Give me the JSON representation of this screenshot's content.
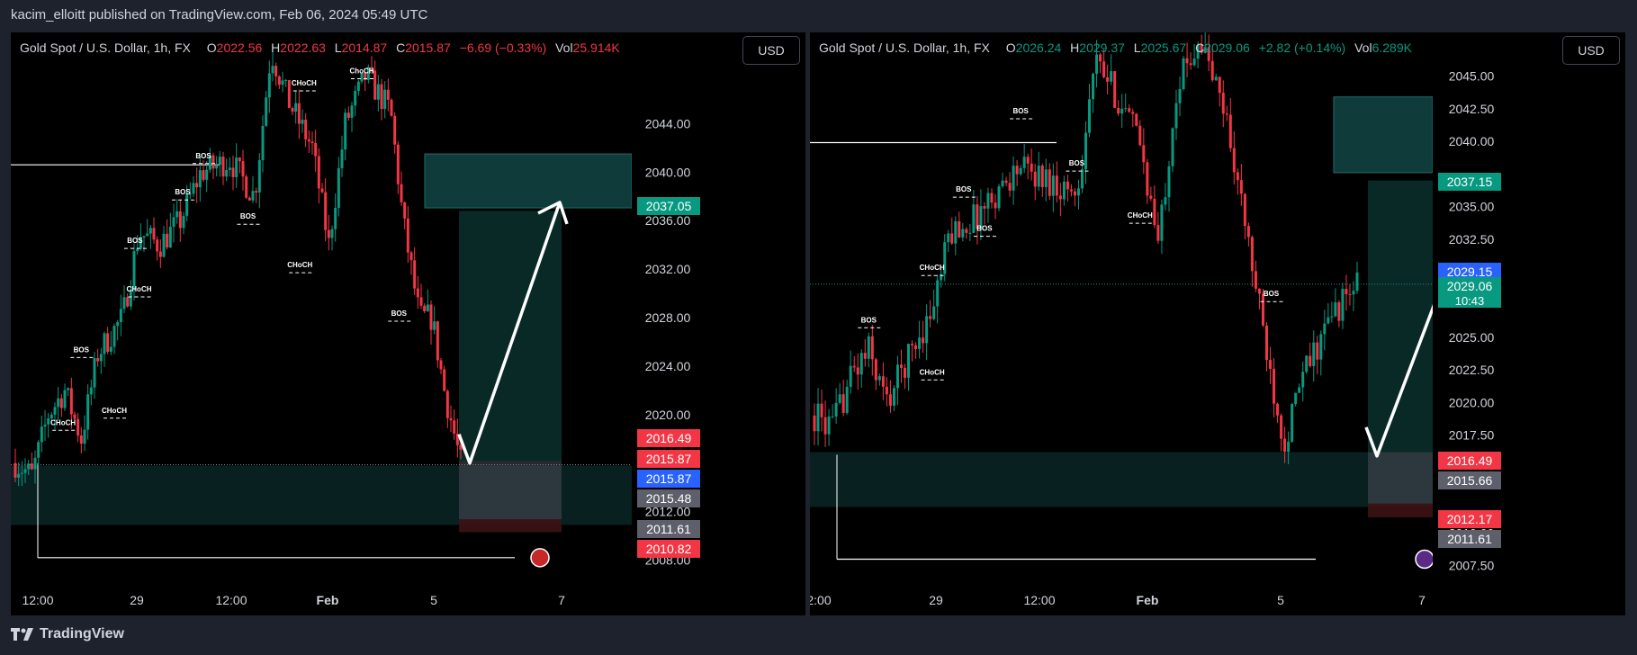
{
  "header": {
    "published": "kacim_elloitt published on TradingView.com, Feb 06, 2024 05:49 UTC"
  },
  "footer": {
    "brand": "TradingView"
  },
  "colors": {
    "up": "#089981",
    "down": "#f23645",
    "zone": "#0f3b3b",
    "target": "#0a2d2a",
    "stop": "#3d1214",
    "blue": "#2962ff",
    "gray": "#5d606b"
  },
  "chart_data": [
    {
      "type": "candlestick",
      "legend": {
        "symbol": "Gold Spot / U.S. Dollar, 1h, FX",
        "o_label": "O",
        "o": "2022.56",
        "h_label": "H",
        "h": "2022.63",
        "l_label": "L",
        "l": "2014.87",
        "c_label": "C",
        "c": "2015.87",
        "chg": "−6.69 (−0.33%)",
        "vol_label": "Vol",
        "vol": "25.914K",
        "direction": "down"
      },
      "currency": "USD",
      "ylim": [
        2007,
        2049
      ],
      "y_ticks": [
        "2008.00",
        "2012.00",
        "2016.00",
        "2020.00",
        "2024.00",
        "2028.00",
        "2032.00",
        "2036.00",
        "2040.00",
        "2044.00"
      ],
      "x_ticks": [
        "12:00",
        "29",
        "12:00",
        "Feb",
        "5",
        "7"
      ],
      "price_tags": [
        {
          "label": "2037.05",
          "color": "#089981"
        },
        {
          "label": "2016.49",
          "color": "#f23645"
        },
        {
          "label": "2015.87",
          "color": "#f23645"
        },
        {
          "label": "2015.87",
          "color": "#2962ff"
        },
        {
          "label": "2015.48",
          "color": "#5d606b"
        },
        {
          "label": "2011.61",
          "color": "#5d606b"
        },
        {
          "label": "2010.82",
          "color": "#f23645"
        }
      ],
      "annotations": [
        "BOS",
        "BOS",
        "BOS",
        "BOS",
        "BOS",
        "BOS",
        "CHoCH",
        "CHoCH",
        "CHoCH",
        "CHoCH",
        "CHoCH",
        "ChoCH"
      ]
    },
    {
      "type": "candlestick",
      "legend": {
        "symbol": "Gold Spot / U.S. Dollar, 1h, FX",
        "o_label": "O",
        "o": "2026.24",
        "h_label": "H",
        "h": "2029.37",
        "l_label": "L",
        "l": "2025.67",
        "c_label": "C",
        "c": "2029.06",
        "chg": "+2.82 (+0.14%)",
        "vol_label": "Vol",
        "vol": "6.289K",
        "direction": "up"
      },
      "currency": "USD",
      "ylim": [
        2007,
        2046
      ],
      "y_ticks": [
        "2007.50",
        "2010.00",
        "2017.50",
        "2020.00",
        "2022.50",
        "2025.00",
        "2032.50",
        "2035.00",
        "2040.00",
        "2042.50",
        "2045.00"
      ],
      "x_ticks": [
        "2:00",
        "29",
        "12:00",
        "Feb",
        "5",
        "7"
      ],
      "price_tags": [
        {
          "label": "2037.15",
          "color": "#089981"
        },
        {
          "label": "2029.15",
          "color": "#2962ff"
        },
        {
          "label": "2029.06",
          "sub": "10:43",
          "color": "#089981"
        },
        {
          "label": "2016.49",
          "color": "#f23645"
        },
        {
          "label": "2015.66",
          "color": "#5d606b"
        },
        {
          "label": "2012.17",
          "color": "#f23645"
        },
        {
          "label": "2011.61",
          "color": "#5d606b"
        }
      ],
      "annotations": [
        "BOS",
        "BOS",
        "BOS",
        "BOS",
        "BOS",
        "BOS",
        "CHoCH",
        "CHoCH",
        "CHoCH"
      ]
    }
  ]
}
